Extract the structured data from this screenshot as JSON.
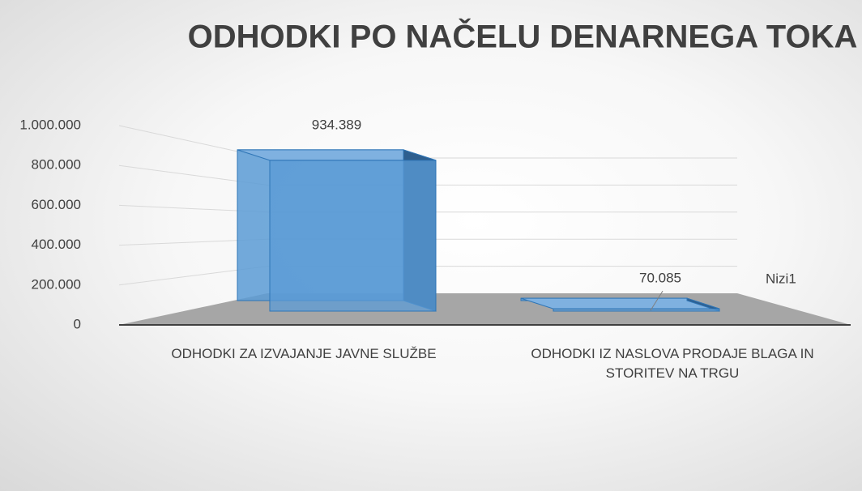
{
  "chart_data": {
    "type": "bar3d",
    "title": "ODHODKI PO NAČELU DENARNEGA TOKA",
    "categories": [
      "ODHODKI ZA IZVAJANJE JAVNE SLUŽBE",
      "ODHODKI IZ NASLOVA PRODAJE BLAGA IN STORITEV NA TRGU"
    ],
    "series": [
      {
        "name": "Nizi1",
        "color": "#5b9bd5",
        "values": [
          934389,
          70085
        ],
        "value_labels": [
          "934.389",
          "70.085"
        ]
      }
    ],
    "ylim": [
      0,
      1000000
    ],
    "yticks": [
      0,
      {
        "value": 200000,
        "label": "200.000"
      },
      {
        "value": 400000,
        "label": "400.000"
      },
      {
        "value": 600000,
        "label": "600.000"
      },
      {
        "value": 800000,
        "label": "800.000"
      },
      {
        "value": 1000000,
        "label": "1.000.000"
      }
    ],
    "grid": true
  }
}
